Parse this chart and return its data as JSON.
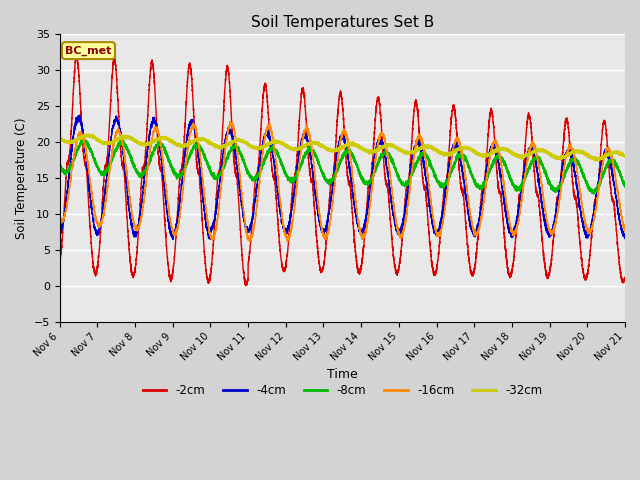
{
  "title": "Soil Temperatures Set B",
  "xlabel": "Time",
  "ylabel": "Soil Temperature (C)",
  "ylim": [
    -5,
    35
  ],
  "xlim": [
    0,
    360
  ],
  "fig_facecolor": "#d3d3d3",
  "plot_facecolor": "#e8e8e8",
  "grid_color": "white",
  "annotation_text": "BC_met",
  "annotation_bg": "#ffff99",
  "annotation_border": "#aa8800",
  "series": [
    {
      "label": "-2cm",
      "color": "#dd0000",
      "lw": 1.0
    },
    {
      "label": "-4cm",
      "color": "#0000cc",
      "lw": 1.0
    },
    {
      "label": "-8cm",
      "color": "#00bb00",
      "lw": 1.2
    },
    {
      "label": "-16cm",
      "color": "#ff8800",
      "lw": 1.0
    },
    {
      "label": "-32cm",
      "color": "#cccc00",
      "lw": 1.5
    }
  ],
  "xtick_labels": [
    "Nov 6",
    "Nov 7",
    "Nov 8",
    "Nov 9",
    "Nov 10",
    "Nov 11",
    "Nov 12",
    "Nov 13",
    "Nov 14",
    "Nov 15",
    "Nov 16",
    "Nov 17",
    "Nov 18",
    "Nov 19",
    "Nov 20",
    "Nov 21"
  ],
  "xtick_positions": [
    0,
    24,
    48,
    72,
    96,
    120,
    144,
    168,
    192,
    216,
    240,
    264,
    288,
    312,
    336,
    360
  ],
  "ytick_positions": [
    -5,
    0,
    5,
    10,
    15,
    20,
    25,
    30,
    35
  ]
}
